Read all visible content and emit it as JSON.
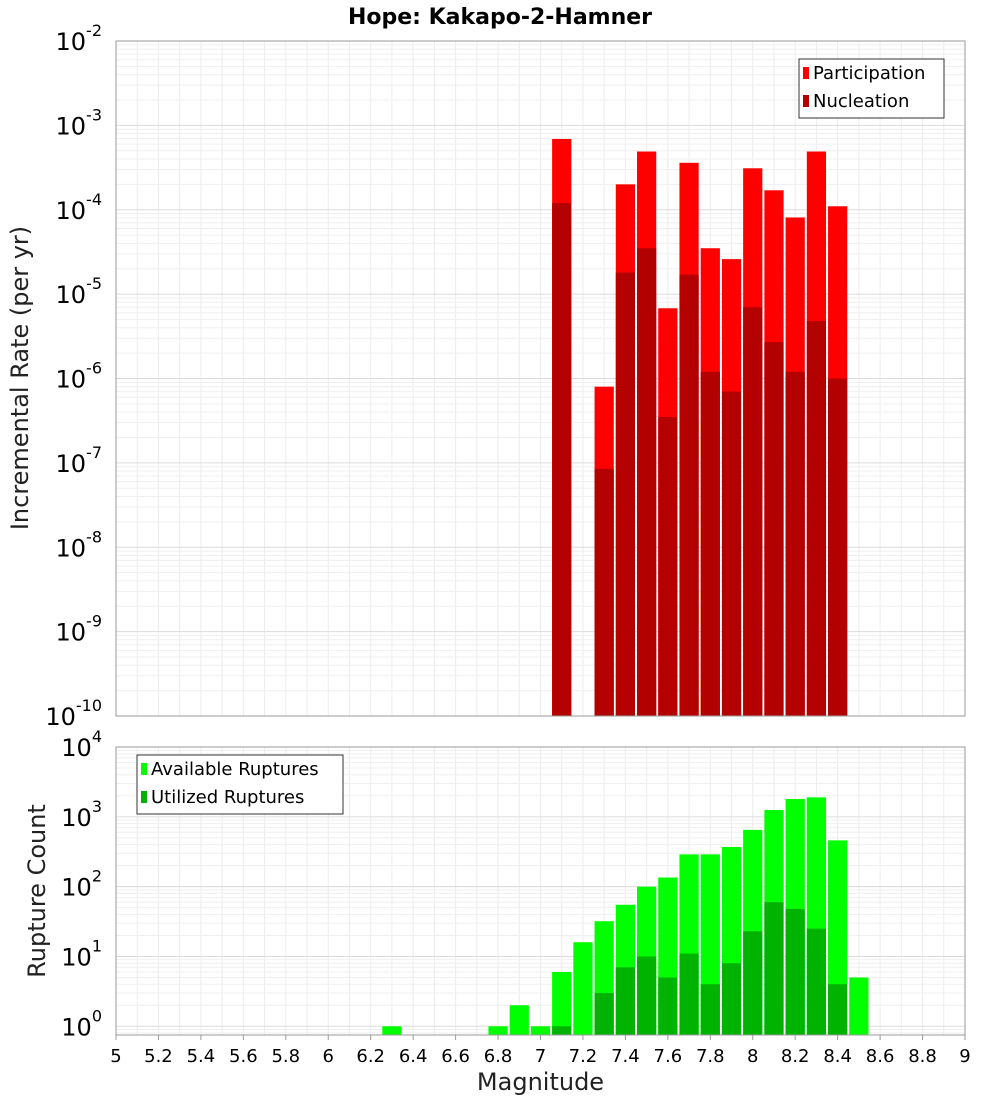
{
  "title": "Hope: Kakapo-2-Hamner",
  "chart_data": [
    {
      "type": "bar",
      "ylabel": "Incremental Rate (per yr)",
      "yscale": "log",
      "ylim": [
        1e-10,
        0.01
      ],
      "xlim": [
        5,
        9
      ],
      "bin_width": 0.1,
      "x": [
        7.1,
        7.3,
        7.4,
        7.5,
        7.6,
        7.7,
        7.8,
        7.9,
        8.0,
        8.1,
        8.2,
        8.3,
        8.4
      ],
      "y_tick_labels": [
        {
          "base": "10",
          "exp": "-2"
        },
        {
          "base": "10",
          "exp": "-3"
        },
        {
          "base": "10",
          "exp": "-4"
        },
        {
          "base": "10",
          "exp": "-5"
        },
        {
          "base": "10",
          "exp": "-6"
        },
        {
          "base": "10",
          "exp": "-7"
        },
        {
          "base": "10",
          "exp": "-8"
        },
        {
          "base": "10",
          "exp": "-9"
        },
        {
          "base": "10",
          "exp": "-10"
        }
      ],
      "series": [
        {
          "name": "Participation",
          "color": "#ff0000",
          "values": [
            0.00069,
            8e-07,
            0.0002,
            0.00049,
            6.8e-06,
            0.00036,
            3.5e-05,
            2.6e-05,
            0.00031,
            0.00017,
            8.1e-05,
            0.00049,
            0.00011
          ]
        },
        {
          "name": "Nucleation",
          "color": "#b30000",
          "values": [
            0.00012,
            8.5e-08,
            1.8e-05,
            3.5e-05,
            3.5e-07,
            1.7e-05,
            1.2e-06,
            7e-07,
            7e-06,
            2.7e-06,
            1.2e-06,
            4.8e-06,
            1e-06
          ]
        }
      ],
      "legend": "top-right",
      "grid": true
    },
    {
      "type": "bar",
      "ylabel": "Rupture Count",
      "yscale": "log",
      "ylim": [
        0.75,
        10000
      ],
      "xlim": [
        5,
        9
      ],
      "bin_width": 0.1,
      "xlabel": "Magnitude",
      "x": [
        6.3,
        6.8,
        6.9,
        7.0,
        7.1,
        7.2,
        7.3,
        7.4,
        7.5,
        7.6,
        7.7,
        7.8,
        7.9,
        8.0,
        8.1,
        8.2,
        8.3,
        8.4,
        8.5
      ],
      "x_tick_labels": [
        "5",
        "5.2",
        "5.4",
        "5.6",
        "5.8",
        "6",
        "6.2",
        "6.4",
        "6.6",
        "6.8",
        "7",
        "7.2",
        "7.4",
        "7.6",
        "7.8",
        "8",
        "8.2",
        "8.4",
        "8.6",
        "8.8",
        "9"
      ],
      "y_tick_labels": [
        {
          "base": "10",
          "exp": "4"
        },
        {
          "base": "10",
          "exp": "3"
        },
        {
          "base": "10",
          "exp": "2"
        },
        {
          "base": "10",
          "exp": "1"
        },
        {
          "base": "10",
          "exp": "0"
        }
      ],
      "series": [
        {
          "name": "Available Ruptures",
          "color": "#00ff00",
          "values": [
            1,
            1,
            2,
            1,
            6,
            16,
            32,
            55,
            100,
            135,
            290,
            290,
            370,
            650,
            1250,
            1800,
            1900,
            460,
            5
          ]
        },
        {
          "name": "Utilized Ruptures",
          "color": "#00b300",
          "values": [
            null,
            null,
            null,
            null,
            1,
            null,
            3,
            7,
            10,
            5,
            11,
            4,
            8,
            23,
            60,
            48,
            25,
            4,
            null
          ]
        }
      ],
      "legend": "top-left",
      "grid": true
    }
  ]
}
